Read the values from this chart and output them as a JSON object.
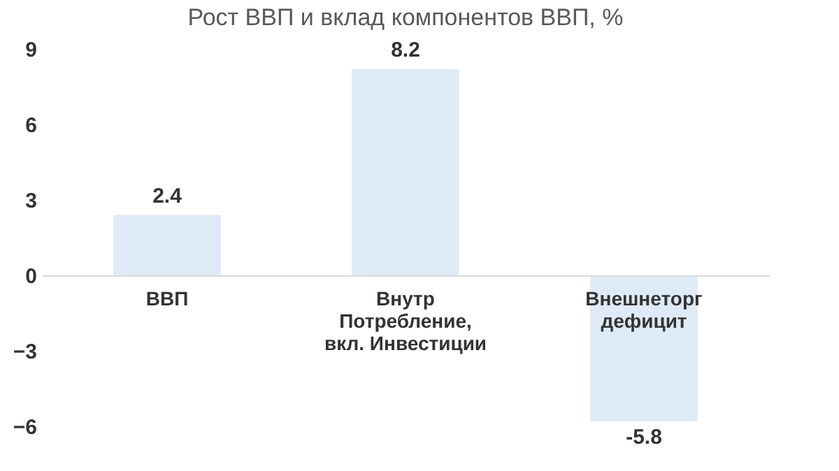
{
  "chart_data": {
    "type": "bar",
    "title": "Рост ВВП и вклад компонентов ВВП, %",
    "categories": [
      "ВВП",
      "Внутр Потребление, вкл. Инвестиции",
      "Внешнеторг дефицит"
    ],
    "values": [
      2.4,
      8.2,
      -5.8
    ],
    "color": "#deeaf6",
    "ylim": [
      -6,
      9
    ],
    "yticks": [
      -6,
      -3,
      0,
      3,
      6,
      9
    ],
    "grid": false,
    "data_labels": true
  }
}
